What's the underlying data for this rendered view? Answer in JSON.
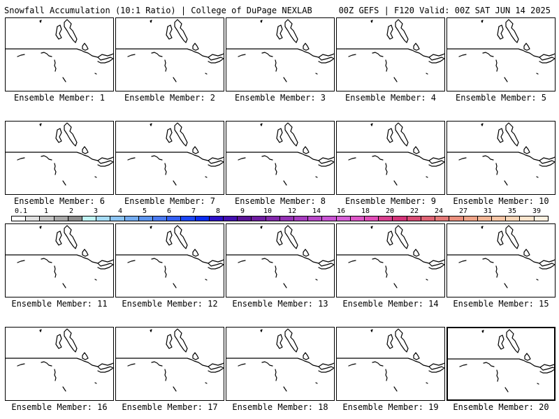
{
  "header": {
    "left_title": "Snowfall Accumulation (10:1 Ratio) | College of DuPage NEXLAB",
    "right_title": "00Z GEFS | F120 Valid: 00Z SAT JUN 14 2025"
  },
  "panels": [
    {
      "label": "Ensemble Member: 1"
    },
    {
      "label": "Ensemble Member: 2"
    },
    {
      "label": "Ensemble Member: 3"
    },
    {
      "label": "Ensemble Member: 4"
    },
    {
      "label": "Ensemble Member: 5"
    },
    {
      "label": "Ensemble Member: 6"
    },
    {
      "label": "Ensemble Member: 7"
    },
    {
      "label": "Ensemble Member: 8"
    },
    {
      "label": "Ensemble Member: 9"
    },
    {
      "label": "Ensemble Member: 10"
    },
    {
      "label": "Ensemble Member: 11"
    },
    {
      "label": "Ensemble Member: 12"
    },
    {
      "label": "Ensemble Member: 13"
    },
    {
      "label": "Ensemble Member: 14"
    },
    {
      "label": "Ensemble Member: 15"
    },
    {
      "label": "Ensemble Member: 16"
    },
    {
      "label": "Ensemble Member: 17"
    },
    {
      "label": "Ensemble Member: 18"
    },
    {
      "label": "Ensemble Member: 19"
    },
    {
      "label": "Ensemble Member: 20"
    }
  ],
  "colorbar": {
    "tick_labels": [
      "0.1",
      "1",
      "2",
      "3",
      "4",
      "5",
      "6",
      "7",
      "8",
      "9",
      "10",
      "12",
      "14",
      "16",
      "18",
      "20",
      "22",
      "24",
      "27",
      "31",
      "35",
      "39"
    ],
    "colors": [
      "#ffffff",
      "#e0e0e0",
      "#c4c4c4",
      "#a8a8a8",
      "#8c8c8c",
      "#bff3f3",
      "#a6dcf5",
      "#8cc4f2",
      "#74acf0",
      "#5c94ee",
      "#4a7af0",
      "#3460f2",
      "#1c46f4",
      "#0a2cf0",
      "#2c10c8",
      "#4410b0",
      "#5a1496",
      "#6e1ca0",
      "#8228aa",
      "#9432b4",
      "#a63cbe",
      "#b848c8",
      "#c854d2",
      "#d660d6",
      "#dc56c6",
      "#e04cb6",
      "#d8408e",
      "#d23478",
      "#d84c74",
      "#de6474",
      "#e47a78",
      "#ea907e",
      "#eea488",
      "#f2b696",
      "#f6c6a6",
      "#f9d6b8",
      "#fbe4cc",
      "#fdf0e0"
    ]
  }
}
